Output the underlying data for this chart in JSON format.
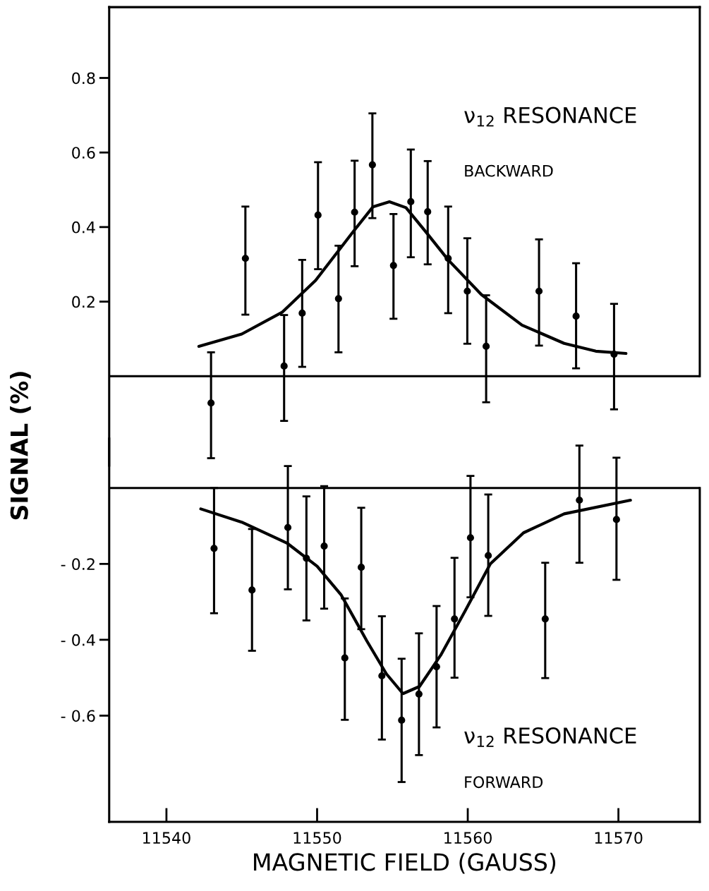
{
  "chart_data": [
    {
      "type": "scatter",
      "ylabel": "SIGNAL (%)",
      "annotations": [
        "ν$_{12}$ RESONANCE",
        "BACKWARD"
      ],
      "xlim": [
        11536.2,
        11575.4
      ],
      "ylim": [
        -0.24,
        0.99
      ],
      "yticks": [
        0.2,
        0.4,
        0.6,
        0.8
      ],
      "tick_labels": "y",
      "grid": false,
      "legend": false,
      "ref_lines": [
        {
          "axis": "y",
          "value": 0,
          "color": "#000000",
          "line_style": "solid"
        }
      ],
      "marker": "circle",
      "series": [
        {
          "color": "#000000",
          "x": [
            11542.96,
            11545.24,
            11547.81,
            11549.01,
            11550.06,
            11551.42,
            11552.49,
            11553.67,
            11555.07,
            11556.22,
            11557.34,
            11558.7,
            11559.97,
            11561.22,
            11564.73,
            11567.19,
            11569.71
          ],
          "values": [
            -0.072,
            0.316,
            0.027,
            0.169,
            0.432,
            0.208,
            0.44,
            0.567,
            0.297,
            0.468,
            0.441,
            0.316,
            0.228,
            0.08,
            0.228,
            0.161,
            0.059
          ],
          "errors": [
            [
              -0.22,
              0.064
            ],
            [
              0.165,
              0.455
            ],
            [
              -0.12,
              0.164
            ],
            [
              0.025,
              0.312
            ],
            [
              0.287,
              0.574
            ],
            [
              0.064,
              0.35
            ],
            [
              0.295,
              0.578
            ],
            [
              0.424,
              0.705
            ],
            [
              0.154,
              0.435
            ],
            [
              0.319,
              0.608
            ],
            [
              0.3,
              0.577
            ],
            [
              0.169,
              0.455
            ],
            [
              0.087,
              0.37
            ],
            [
              -0.07,
              0.217
            ],
            [
              0.082,
              0.367
            ],
            [
              0.021,
              0.303
            ],
            [
              -0.089,
              0.194
            ]
          ]
        },
        {
          "type": "line",
          "color": "#000000",
          "marker": "none",
          "x": [
            11542.15,
            11545.0,
            11547.7,
            11549.9,
            11552.4,
            11553.7,
            11554.8,
            11555.9,
            11557.3,
            11558.7,
            11560.9,
            11563.6,
            11566.4,
            11568.5,
            11570.5
          ],
          "values": [
            0.08,
            0.113,
            0.172,
            0.257,
            0.388,
            0.454,
            0.468,
            0.452,
            0.383,
            0.312,
            0.219,
            0.137,
            0.088,
            0.067,
            0.061
          ]
        }
      ]
    },
    {
      "type": "scatter",
      "xlabel": "MAGNETIC FIELD (GAUSS)",
      "annotations": [
        "ν$_{12}$ RESONANCE",
        "FORWARD"
      ],
      "xlim": [
        11536.2,
        11575.4
      ],
      "xticks": [
        11540,
        11550,
        11560,
        11570
      ],
      "ylim": [
        -0.88,
        0.13
      ],
      "yticks": [
        {
          "value": -0.2,
          "label": "- 0.2"
        },
        {
          "value": -0.4,
          "label": "- 0.4"
        },
        {
          "value": -0.6,
          "label": "- 0.6"
        }
      ],
      "grid": false,
      "legend": false,
      "ref_lines": [
        {
          "axis": "y",
          "value": 0,
          "color": "#000000",
          "line_style": "solid"
        }
      ],
      "marker": "circle",
      "series": [
        {
          "color": "#000000",
          "x": [
            11543.16,
            11545.68,
            11548.06,
            11549.29,
            11550.47,
            11551.84,
            11552.93,
            11554.3,
            11555.61,
            11556.76,
            11557.93,
            11559.12,
            11560.18,
            11561.36,
            11565.14,
            11567.41,
            11569.87
          ],
          "values": [
            -0.159,
            -0.269,
            -0.104,
            -0.185,
            -0.153,
            -0.448,
            -0.209,
            -0.495,
            -0.612,
            -0.543,
            -0.471,
            -0.345,
            -0.131,
            -0.178,
            -0.345,
            -0.032,
            -0.083
          ],
          "errors": [
            [
              -0.33,
              0.0
            ],
            [
              -0.429,
              -0.108
            ],
            [
              -0.267,
              0.058
            ],
            [
              -0.349,
              -0.022
            ],
            [
              -0.318,
              0.005
            ],
            [
              -0.611,
              -0.291
            ],
            [
              -0.372,
              -0.052
            ],
            [
              -0.663,
              -0.338
            ],
            [
              -0.775,
              -0.45
            ],
            [
              -0.704,
              -0.383
            ],
            [
              -0.631,
              -0.311
            ],
            [
              -0.5,
              -0.184
            ],
            [
              -0.288,
              0.032
            ],
            [
              -0.337,
              -0.017
            ],
            [
              -0.501,
              -0.197
            ],
            [
              -0.197,
              0.112
            ],
            [
              -0.242,
              0.08
            ]
          ]
        },
        {
          "type": "line",
          "color": "#000000",
          "marker": "none",
          "x": [
            11542.28,
            11545.0,
            11548.0,
            11550.0,
            11551.6,
            11553.3,
            11554.6,
            11555.7,
            11556.8,
            11558.2,
            11559.8,
            11561.5,
            11563.7,
            11566.4,
            11570.8
          ],
          "values": [
            -0.055,
            -0.09,
            -0.145,
            -0.206,
            -0.282,
            -0.403,
            -0.49,
            -0.542,
            -0.523,
            -0.441,
            -0.326,
            -0.2,
            -0.118,
            -0.068,
            -0.032
          ]
        }
      ]
    }
  ]
}
